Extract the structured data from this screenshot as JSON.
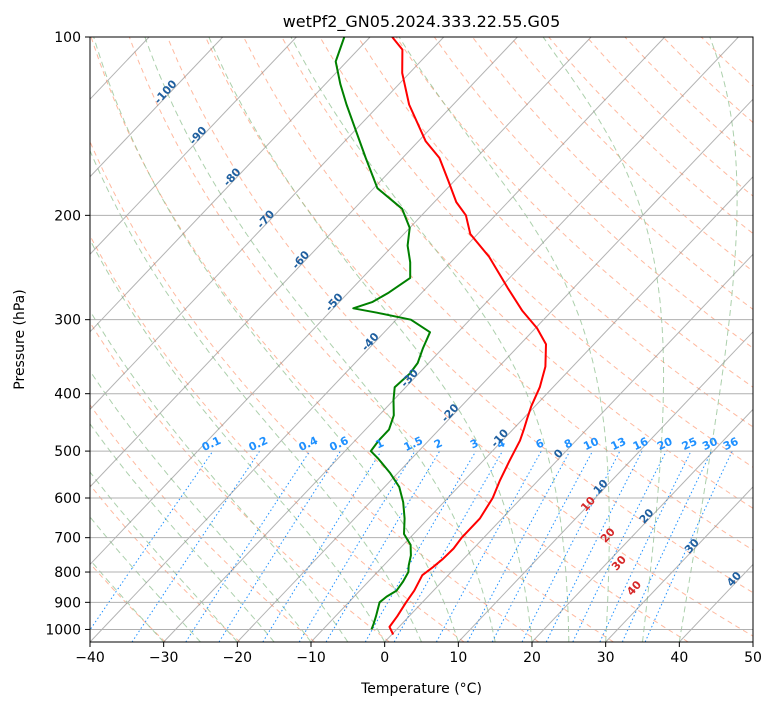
{
  "chart_data": {
    "type": "line",
    "title": "wetPf2_GN05.2024.333.22.55.G05",
    "xlabel": "Temperature (°C)",
    "ylabel": "Pressure (hPa)",
    "xlim": [
      -40,
      50
    ],
    "ylim": [
      1050,
      100
    ],
    "y_scale": "log",
    "x_ticks": [
      -40,
      -30,
      -20,
      -10,
      0,
      10,
      20,
      30,
      40,
      50
    ],
    "y_ticks": [
      1000,
      900,
      800,
      700,
      600,
      500,
      400,
      300,
      200,
      100
    ],
    "grid": true,
    "series": [
      {
        "kind": "temperature",
        "color": "#ff0000",
        "points": [
          [
            0.2,
            1020
          ],
          [
            -1.3,
            990
          ],
          [
            -1.6,
            950
          ],
          [
            -2.2,
            900
          ],
          [
            -2.6,
            860
          ],
          [
            -3.5,
            810
          ],
          [
            -3.1,
            785
          ],
          [
            -2.8,
            760
          ],
          [
            -2.7,
            730
          ],
          [
            -3.0,
            700
          ],
          [
            -3.0,
            650
          ],
          [
            -3.9,
            600
          ],
          [
            -5.2,
            560
          ],
          [
            -6.4,
            520
          ],
          [
            -7.6,
            480
          ],
          [
            -8.5,
            460
          ],
          [
            -9.5,
            440
          ],
          [
            -10.5,
            420
          ],
          [
            -11.8,
            390
          ],
          [
            -13.7,
            360
          ],
          [
            -16.5,
            330
          ],
          [
            -19.8,
            310
          ],
          [
            -24.0,
            290
          ],
          [
            -29.0,
            265
          ],
          [
            -35.5,
            235
          ],
          [
            -41.0,
            215
          ],
          [
            -44.0,
            200
          ],
          [
            -47.0,
            190
          ],
          [
            -50.8,
            175
          ],
          [
            -55.0,
            160
          ],
          [
            -59.0,
            150
          ],
          [
            -66.0,
            130
          ],
          [
            -71.0,
            115
          ],
          [
            -74.0,
            105
          ],
          [
            -77.0,
            100
          ]
        ]
      },
      {
        "kind": "dewpoint",
        "color": "#008000",
        "points": [
          [
            -3.4,
            1000
          ],
          [
            -3.8,
            980
          ],
          [
            -4.5,
            950
          ],
          [
            -5.8,
            900
          ],
          [
            -5.6,
            880
          ],
          [
            -5.0,
            860
          ],
          [
            -5.3,
            830
          ],
          [
            -5.8,
            800
          ],
          [
            -6.6,
            780
          ],
          [
            -7.6,
            750
          ],
          [
            -9.0,
            720
          ],
          [
            -11.3,
            690
          ],
          [
            -13.2,
            650
          ],
          [
            -15.5,
            610
          ],
          [
            -18.0,
            575
          ],
          [
            -21.0,
            545
          ],
          [
            -24.5,
            515
          ],
          [
            -26.5,
            500
          ],
          [
            -26.8,
            480
          ],
          [
            -26.8,
            460
          ],
          [
            -28.0,
            435
          ],
          [
            -30.0,
            410
          ],
          [
            -31.5,
            390
          ],
          [
            -31.2,
            370
          ],
          [
            -31.5,
            355
          ],
          [
            -32.7,
            335
          ],
          [
            -33.8,
            315
          ],
          [
            -38.0,
            300
          ],
          [
            -43.5,
            292
          ],
          [
            -47.3,
            287
          ],
          [
            -45.5,
            280
          ],
          [
            -44.5,
            270
          ],
          [
            -43.5,
            255
          ],
          [
            -45.5,
            240
          ],
          [
            -48.0,
            225
          ],
          [
            -50.0,
            210
          ],
          [
            -53.5,
            195
          ],
          [
            -59.5,
            180
          ],
          [
            -65.0,
            160
          ],
          [
            -69.5,
            145
          ],
          [
            -74.5,
            130
          ],
          [
            -78.0,
            120
          ],
          [
            -81.5,
            110
          ],
          [
            -83.5,
            100
          ]
        ]
      }
    ],
    "background_lines": {
      "dry_adiabat_color": "#ff7f50",
      "moist_adiabat_color": "#90c090",
      "mixing_ratio_color": "#1e90ff",
      "isotherm_color": "#808080",
      "isotherm_label_color": "#1f5f9f",
      "theta_label_color": "#d62728",
      "mixing_ratio_label_pressure": 500
    },
    "isotherm_labels": [
      "-100",
      "-90",
      "-80",
      "-70",
      "-60",
      "-50",
      "-40",
      "-30",
      "-20",
      "-10",
      "0",
      "10",
      "20",
      "30",
      "40"
    ],
    "theta_labels": [
      "10",
      "20",
      "30",
      "40"
    ],
    "mixing_ratio_labels": [
      "0.1",
      "0.2",
      "0.4",
      "0.6",
      "1",
      "1.5",
      "2",
      "3",
      "4",
      "6",
      "8",
      "10",
      "13",
      "16",
      "20",
      "25",
      "30",
      "36"
    ]
  }
}
